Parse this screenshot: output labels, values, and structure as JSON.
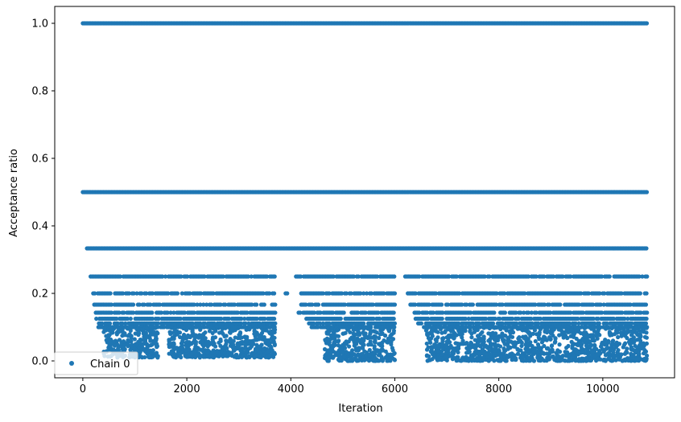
{
  "chart_data": {
    "type": "scatter",
    "title": "",
    "xlabel": "Iteration",
    "ylabel": "Acceptance ratio",
    "xlim": [
      -540,
      11380
    ],
    "ylim": [
      -0.05,
      1.05
    ],
    "xticks": [
      0,
      2000,
      4000,
      6000,
      8000,
      10000
    ],
    "xtick_labels": [
      "0",
      "2000",
      "4000",
      "6000",
      "8000",
      "10000"
    ],
    "yticks": [
      0.0,
      0.2,
      0.4,
      0.6,
      0.8,
      1.0
    ],
    "ytick_labels": [
      "0.0",
      "0.2",
      "0.4",
      "0.6",
      "0.8",
      "1.0"
    ],
    "grid": false,
    "legend_position": "lower-left",
    "series": [
      {
        "name": "Chain 0",
        "color": "#1f77b4",
        "marker": "circle",
        "iterations": [
          0,
          10850
        ],
        "levels": [
          {
            "y": 1.0,
            "ranges": [
              [
                0,
                10850
              ]
            ]
          },
          {
            "y": 0.5,
            "ranges": [
              [
                0,
                10850
              ]
            ]
          },
          {
            "y": 0.3333,
            "ranges": [
              [
                80,
                10850
              ]
            ]
          },
          {
            "y": 0.25,
            "ranges": [
              [
                150,
                3700
              ],
              [
                4100,
                6000
              ],
              [
                6200,
                10850
              ]
            ]
          },
          {
            "y": 0.2,
            "ranges": [
              [
                200,
                3700
              ],
              [
                3900,
                3950
              ],
              [
                4200,
                6000
              ],
              [
                6250,
                10850
              ]
            ]
          },
          {
            "y": 0.1667,
            "ranges": [
              [
                220,
                3700
              ],
              [
                4200,
                6000
              ],
              [
                6300,
                10850
              ]
            ]
          },
          {
            "y": 0.1429,
            "ranges": [
              [
                250,
                3700
              ],
              [
                4150,
                6000
              ],
              [
                6350,
                10850
              ]
            ]
          },
          {
            "y": 0.125,
            "ranges": [
              [
                260,
                3700
              ],
              [
                4300,
                6000
              ],
              [
                6400,
                10850
              ]
            ]
          },
          {
            "y": 0.1111,
            "ranges": [
              [
                280,
                3700
              ],
              [
                4350,
                6000
              ],
              [
                6450,
                10850
              ]
            ]
          },
          {
            "y": 0.1,
            "ranges": [
              [
                300,
                3700
              ],
              [
                4400,
                6000
              ],
              [
                6500,
                10850
              ]
            ]
          }
        ],
        "dense_low_regions": [
          {
            "x": [
              400,
              1450
            ],
            "y": [
              0.01,
              0.1
            ]
          },
          {
            "x": [
              1650,
              3700
            ],
            "y": [
              0.01,
              0.11
            ]
          },
          {
            "x": [
              4650,
              6000
            ],
            "y": [
              0.0,
              0.1
            ]
          },
          {
            "x": [
              6600,
              10850
            ],
            "y": [
              0.0,
              0.1
            ]
          }
        ]
      }
    ]
  }
}
